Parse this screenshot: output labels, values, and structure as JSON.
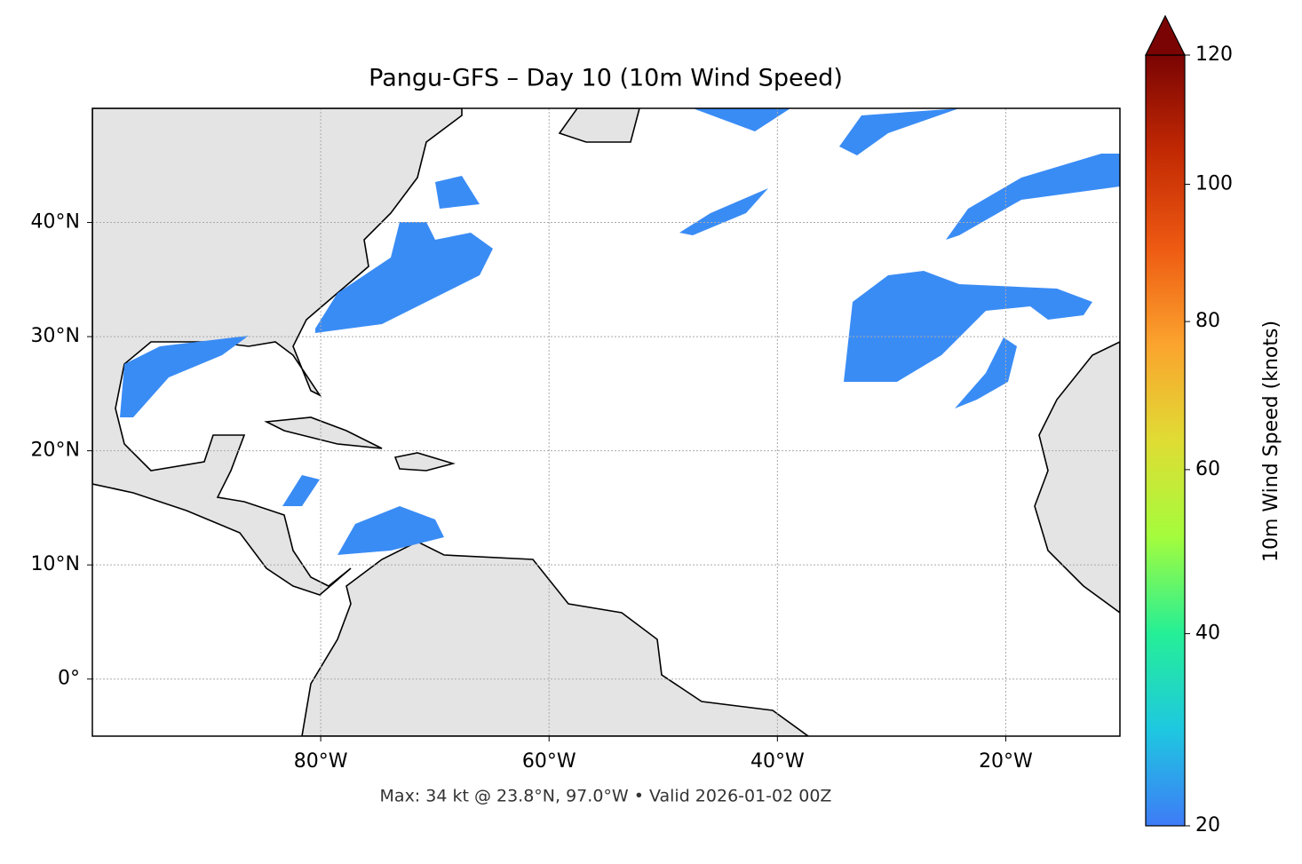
{
  "chart_data": {
    "type": "map",
    "title": "Pangu-GFS – Day 10 (10m Wind Speed)",
    "footer": "Max: 34 kt @ 23.8°N, 97.0°W • Valid 2026-01-02 00Z",
    "xlim": [
      -100,
      -10
    ],
    "ylim": [
      -5,
      50
    ],
    "xticks": [
      {
        "value": -80,
        "label": "80°W"
      },
      {
        "value": -60,
        "label": "60°W"
      },
      {
        "value": -40,
        "label": "40°W"
      },
      {
        "value": -20,
        "label": "20°W"
      }
    ],
    "yticks": [
      {
        "value": 0,
        "label": "0°"
      },
      {
        "value": 10,
        "label": "10°N"
      },
      {
        "value": 20,
        "label": "20°N"
      },
      {
        "value": 30,
        "label": "30°N"
      },
      {
        "value": 40,
        "label": "40°N"
      }
    ],
    "grid": true,
    "colorbar": {
      "label": "10m Wind Speed (knots)",
      "lim": [
        20,
        120
      ],
      "ticks": [
        20,
        40,
        60,
        80,
        100,
        120
      ],
      "colormap": [
        "#3e7bf7",
        "#1ec8e0",
        "#25ef96",
        "#a4fc3c",
        "#e0dc34",
        "#fba32e",
        "#ee5a12",
        "#c22903",
        "#7a0403"
      ]
    }
  }
}
